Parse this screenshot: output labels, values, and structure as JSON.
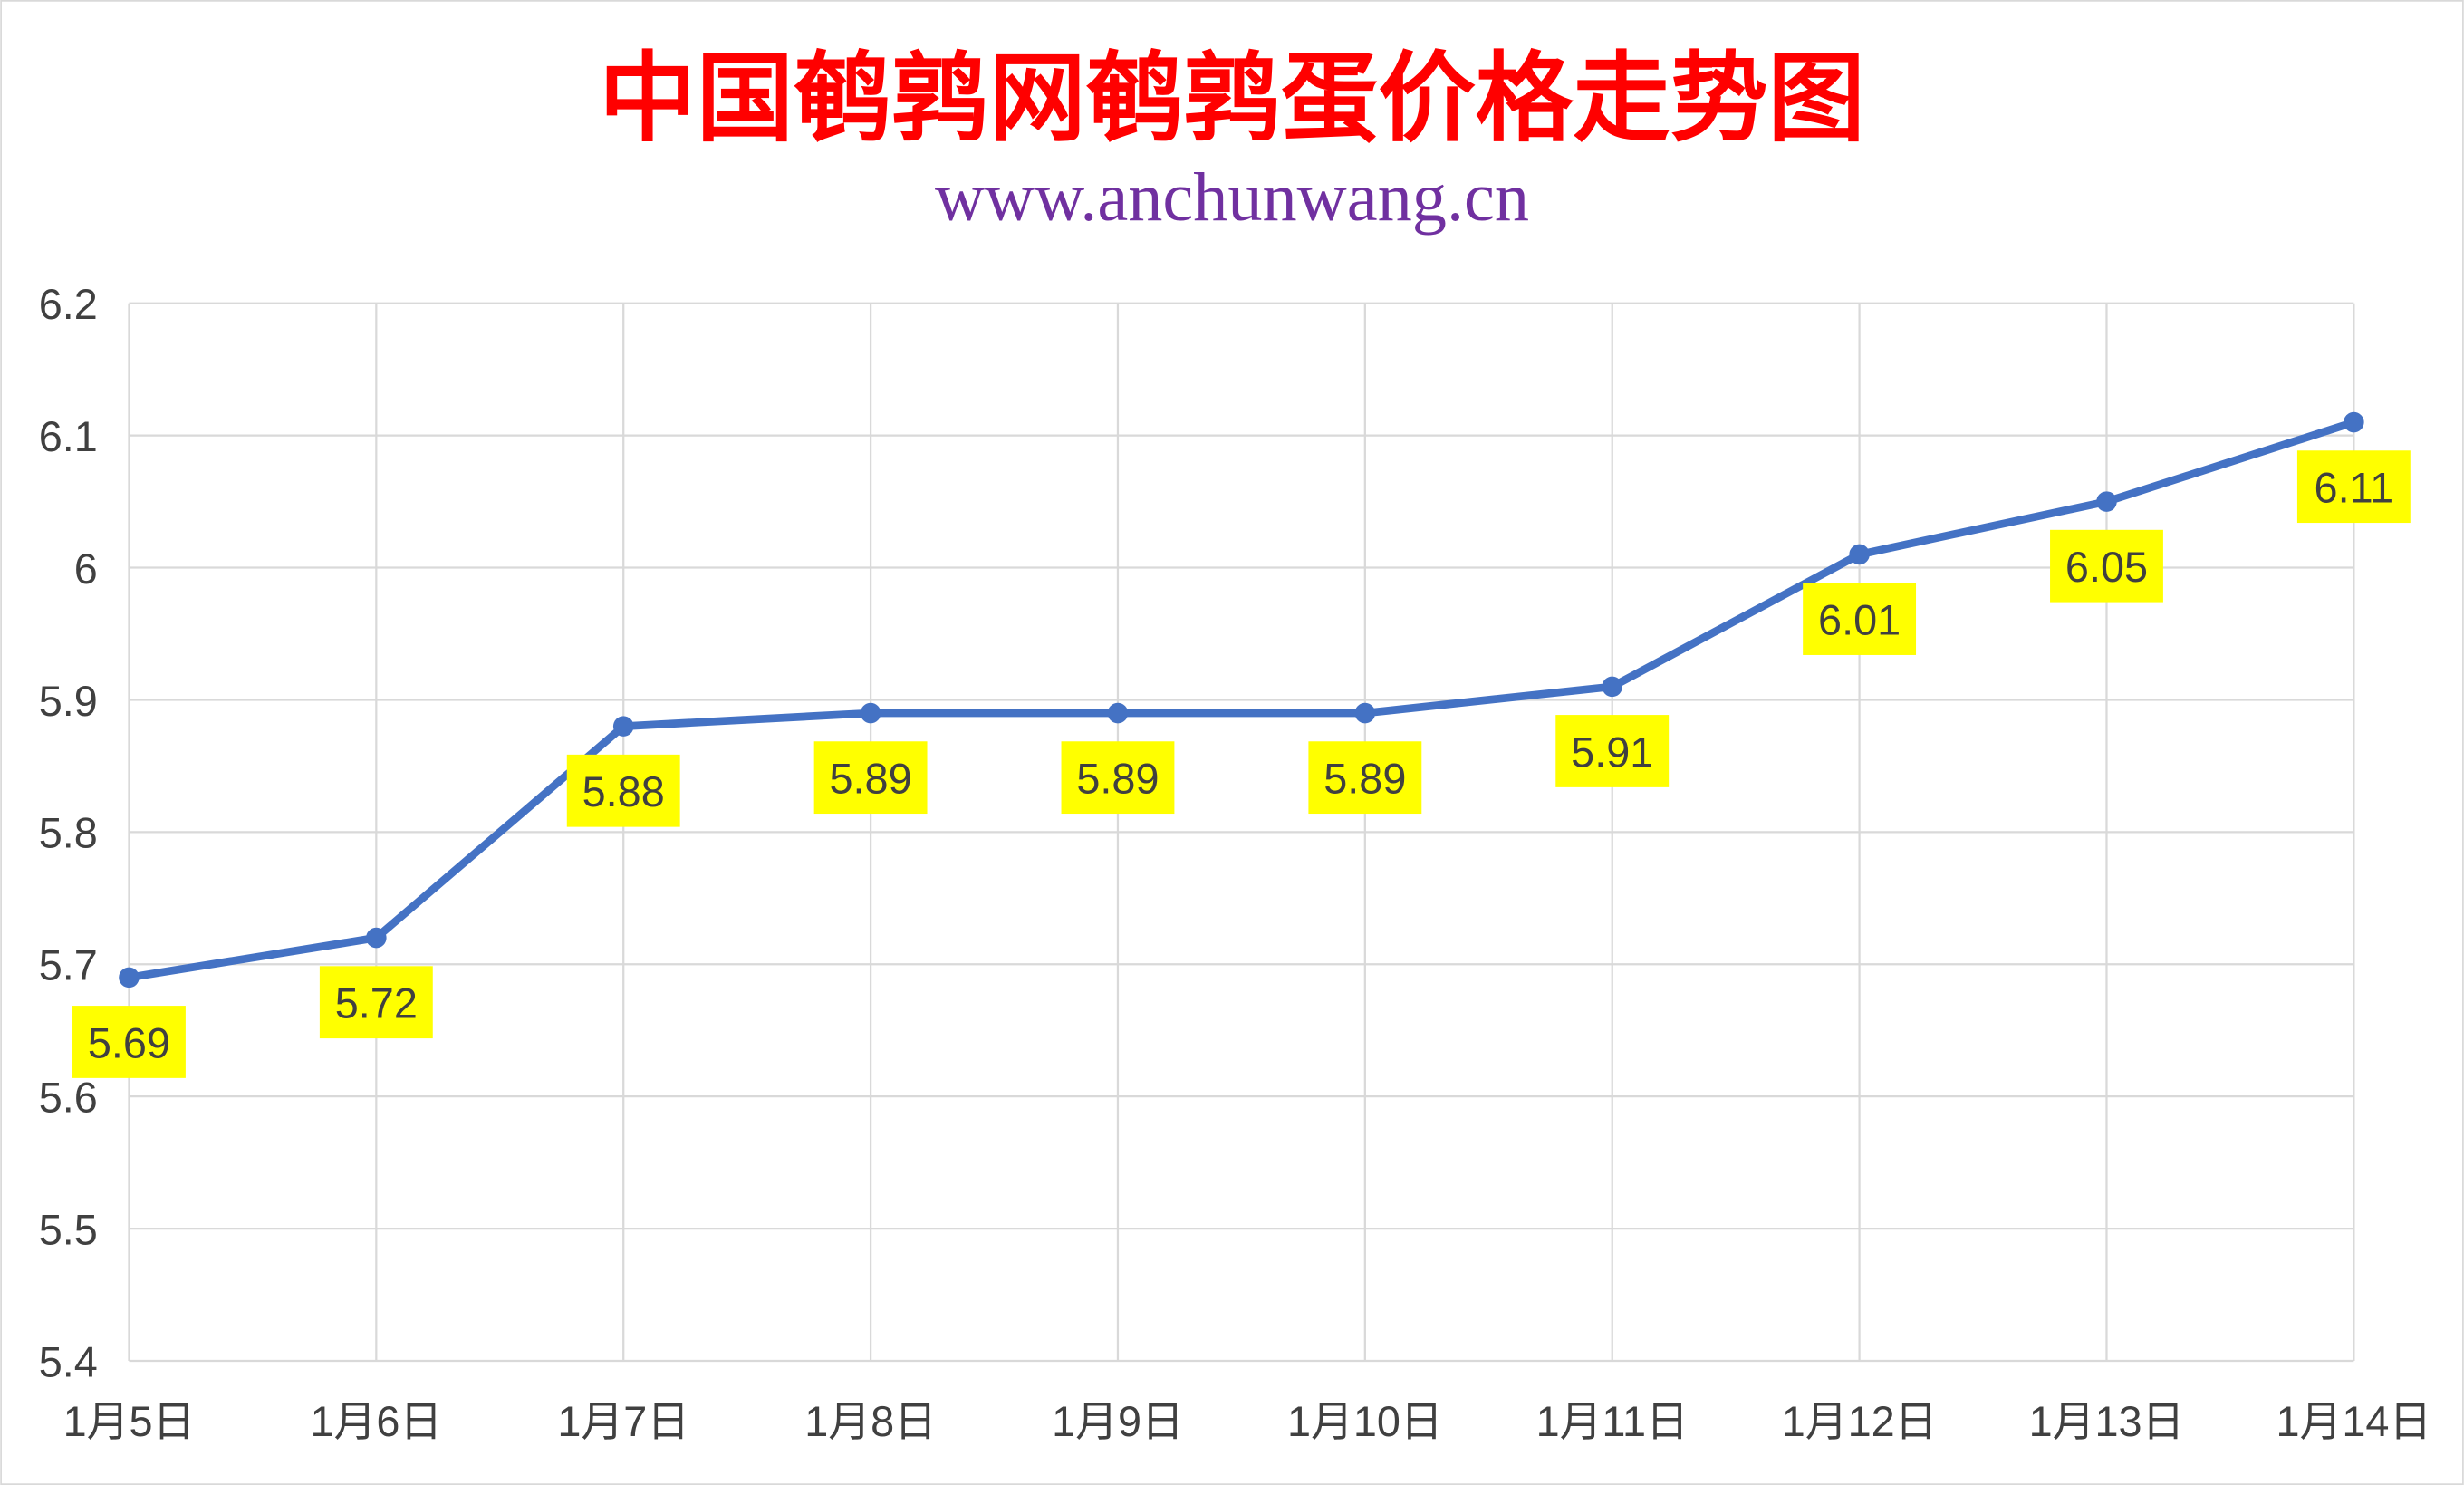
{
  "chart_data": {
    "type": "line",
    "title": "中国鹌鹑网鹌鹑蛋价格走势图",
    "subtitle": "www.anchunwang.cn",
    "xlabel": "",
    "ylabel": "",
    "categories": [
      "1月5日",
      "1月6日",
      "1月7日",
      "1月8日",
      "1月9日",
      "1月10日",
      "1月11日",
      "1月12日",
      "1月13日",
      "1月14日"
    ],
    "values": [
      5.69,
      5.72,
      5.88,
      5.89,
      5.89,
      5.89,
      5.91,
      6.01,
      6.05,
      6.11
    ],
    "data_labels": [
      "5.69",
      "5.72",
      "5.88",
      "5.89",
      "5.89",
      "5.89",
      "5.91",
      "6.01",
      "6.05",
      "6.11"
    ],
    "ylim": [
      5.4,
      6.2
    ],
    "yticks": [
      "5.4",
      "5.5",
      "5.6",
      "5.7",
      "5.8",
      "5.9",
      "6",
      "6.1",
      "6.2"
    ],
    "grid": true,
    "legend": "none",
    "colors": {
      "line": "#4472c4",
      "label_bg": "#ffff00",
      "title": "#ff0000",
      "subtitle": "#7030a0",
      "grid": "#d9d9d9"
    }
  }
}
